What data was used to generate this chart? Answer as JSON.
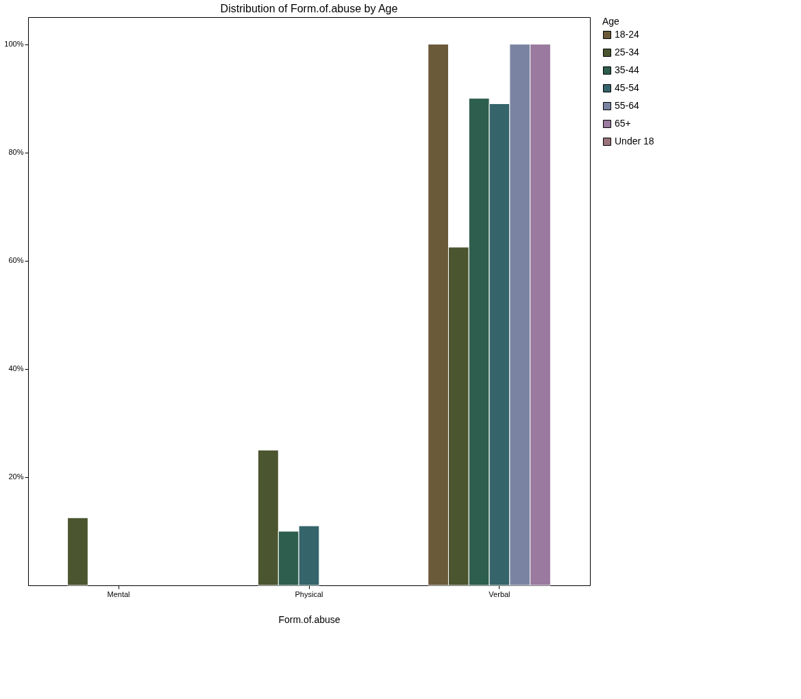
{
  "chart_data": {
    "type": "bar",
    "title": "Distribution of Form.of.abuse by Age",
    "xlabel": "Form.of.abuse",
    "legend_title": "Age",
    "categories": [
      "Mental",
      "Physical",
      "Verbal"
    ],
    "series": [
      {
        "name": "18-24",
        "color": "#6b5a3a",
        "values": [
          null,
          null,
          100
        ]
      },
      {
        "name": "25-34",
        "color": "#4b5530",
        "values": [
          12.5,
          25,
          62.5
        ]
      },
      {
        "name": "35-44",
        "color": "#2d5e4e",
        "values": [
          null,
          10,
          90
        ]
      },
      {
        "name": "45-54",
        "color": "#35646a",
        "values": [
          null,
          11,
          89
        ]
      },
      {
        "name": "55-64",
        "color": "#7a84a2",
        "values": [
          null,
          null,
          100
        ]
      },
      {
        "name": "65+",
        "color": "#9a7a9e",
        "values": [
          null,
          null,
          100
        ]
      },
      {
        "name": "Under 18",
        "color": "#9a727a",
        "values": [
          null,
          null,
          null
        ]
      }
    ],
    "ylim": [
      0,
      105
    ],
    "yticks": [
      {
        "value": 20,
        "label": "20%"
      },
      {
        "value": 40,
        "label": "40%"
      },
      {
        "value": 60,
        "label": "60%"
      },
      {
        "value": 80,
        "label": "80%"
      },
      {
        "value": 100,
        "label": "100%"
      }
    ],
    "grid": false,
    "legend": "right"
  }
}
